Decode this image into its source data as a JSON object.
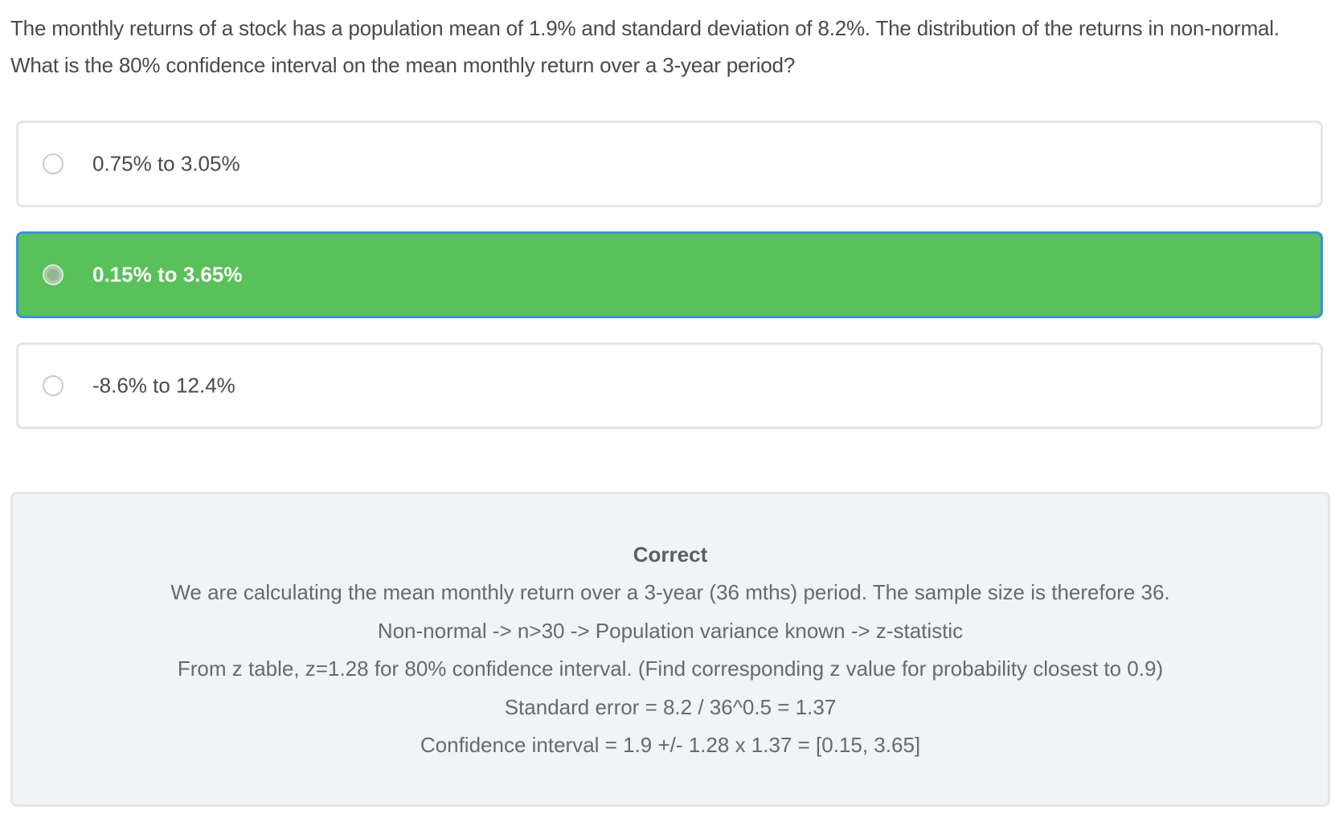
{
  "question": {
    "text": "The monthly returns of a stock has a population mean of 1.9% and standard deviation of 8.2%. The distribution of the returns in non-normal. What is the 80% confidence interval on the mean monthly return over a 3-year period?"
  },
  "options": [
    {
      "label": "0.75% to 3.05%",
      "selected": false
    },
    {
      "label": "0.15% to 3.65%",
      "selected": true
    },
    {
      "label": "-8.6% to 12.4%",
      "selected": false
    }
  ],
  "feedback": {
    "title": "Correct",
    "lines": [
      "We are calculating the mean monthly return over a 3-year (36 mths) period. The sample size is therefore 36.",
      "Non-normal -> n>30 -> Population variance known -> z-statistic",
      "From z table, z=1.28 for 80% confidence interval. (Find corresponding z value for probability closest to 0.9)",
      "Standard error = 8.2 / 36^0.5 = 1.37",
      "Confidence interval = 1.9 +/- 1.28 x 1.37 = [0.15, 3.65]"
    ]
  },
  "colors": {
    "selected_background": "#5ac05a",
    "selected_border": "#3c8fd8",
    "feedback_background": "#f1f3f6"
  }
}
